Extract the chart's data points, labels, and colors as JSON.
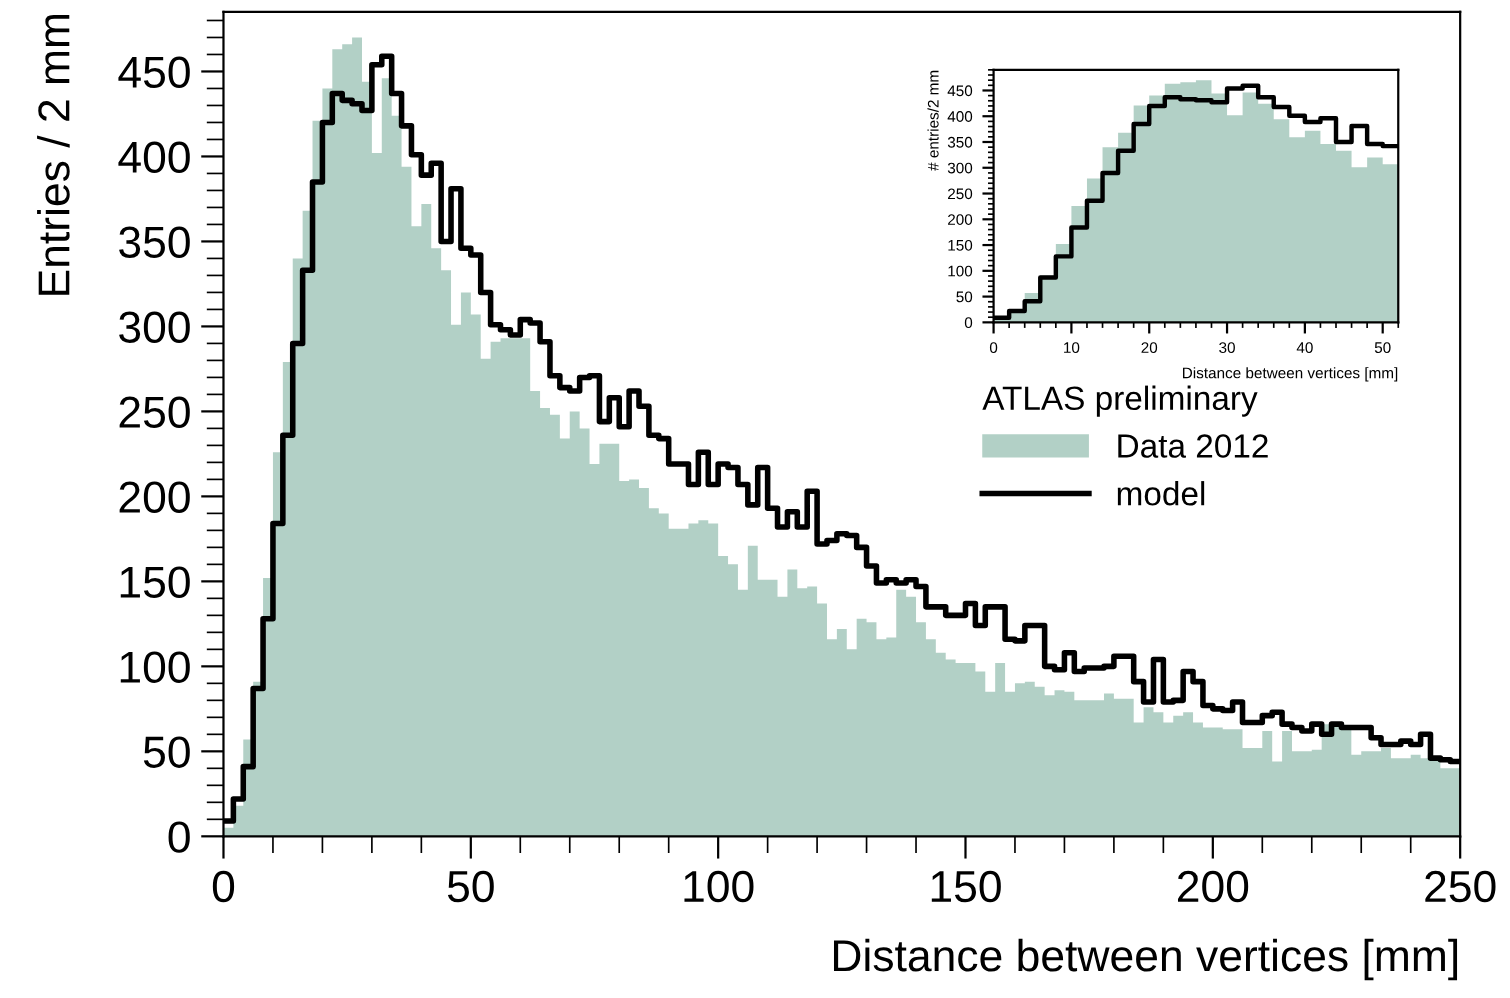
{
  "chart_data": [
    {
      "type": "histogram",
      "xlabel": "Distance between vertices [mm]",
      "ylabel": "Entries / 2 mm",
      "legend_title": "ATLAS preliminary",
      "legend": "center right",
      "grid": false,
      "xlim": [
        0,
        250
      ],
      "xticks": [
        0,
        50,
        100,
        150,
        200,
        250
      ],
      "ylim": [
        0,
        485
      ],
      "yticks": [
        0,
        50,
        100,
        150,
        200,
        250,
        300,
        350,
        400,
        450
      ],
      "bins": [
        0,
        2,
        4,
        6,
        8,
        10,
        12,
        14,
        16,
        18,
        20,
        22,
        24,
        26,
        28,
        30,
        32,
        34,
        36,
        38,
        40,
        42,
        44,
        46,
        48,
        50,
        52,
        54,
        56,
        58,
        60,
        62,
        64,
        66,
        68,
        70,
        72,
        74,
        76,
        78,
        80,
        82,
        84,
        86,
        88,
        90,
        92,
        94,
        96,
        98,
        100,
        102,
        104,
        106,
        108,
        110,
        112,
        114,
        116,
        118,
        120,
        122,
        124,
        126,
        128,
        130,
        132,
        134,
        136,
        138,
        140,
        142,
        144,
        146,
        148,
        150,
        152,
        154,
        156,
        158,
        160,
        162,
        164,
        166,
        168,
        170,
        172,
        174,
        176,
        178,
        180,
        182,
        184,
        186,
        188,
        190,
        192,
        194,
        196,
        198,
        200,
        202,
        204,
        206,
        208,
        210,
        212,
        214,
        216,
        218,
        220,
        222,
        224,
        226,
        228,
        230,
        232,
        234,
        236,
        238,
        240,
        242,
        244,
        246,
        248,
        250
      ],
      "series": [
        {
          "name": "Data 2012",
          "type": "histogram",
          "color": "#b2d0c6",
          "values": [
            5,
            18,
            57,
            91,
            152,
            226,
            279,
            340,
            368,
            421,
            440,
            463,
            466,
            470,
            444,
            402,
            446,
            424,
            394,
            359,
            372,
            346,
            333,
            301,
            320,
            307,
            281,
            291,
            293,
            293,
            293,
            262,
            252,
            248,
            234,
            250,
            240,
            219,
            231,
            231,
            209,
            210,
            205,
            193,
            190,
            181,
            181,
            184,
            186,
            184,
            165,
            160,
            145,
            171,
            151,
            151,
            141,
            157,
            146,
            147,
            137,
            116,
            122,
            110,
            128,
            126,
            116,
            117,
            145,
            141,
            126,
            116,
            108,
            104,
            102,
            102,
            97,
            85,
            102,
            85,
            90,
            91,
            88,
            83,
            86,
            85,
            80,
            80,
            80,
            84,
            81,
            81,
            67,
            76,
            73,
            67,
            71,
            73,
            67,
            64,
            64,
            63,
            63,
            52,
            52,
            62,
            44,
            62,
            50,
            50,
            51,
            66,
            66,
            64,
            48,
            50,
            50,
            52,
            46,
            46,
            48,
            46,
            46,
            40,
            40
          ]
        },
        {
          "name": "model",
          "type": "histogram",
          "color": "#000000",
          "values": [
            9,
            22,
            41,
            87,
            128,
            184,
            236,
            290,
            333,
            385,
            420,
            437,
            433,
            431,
            427,
            454,
            459,
            437,
            418,
            401,
            389,
            396,
            350,
            381,
            346,
            342,
            320,
            301,
            298,
            295,
            304,
            302,
            291,
            271,
            264,
            262,
            270,
            271,
            244,
            258,
            241,
            262,
            253,
            236,
            234,
            219,
            219,
            207,
            226,
            207,
            219,
            217,
            207,
            195,
            217,
            193,
            182,
            191,
            182,
            203,
            172,
            174,
            178,
            177,
            170,
            159,
            149,
            151,
            149,
            151,
            147,
            135,
            135,
            130,
            130,
            137,
            124,
            135,
            135,
            116,
            115,
            124,
            124,
            100,
            98,
            108,
            97,
            99,
            99,
            100,
            106,
            106,
            91,
            79,
            104,
            79,
            80,
            97,
            91,
            77,
            75,
            74,
            79,
            67,
            67,
            71,
            73,
            66,
            64,
            62,
            66,
            60,
            66,
            64,
            64,
            64,
            58,
            54,
            54,
            56,
            54,
            60,
            46,
            45,
            44
          ]
        }
      ]
    },
    {
      "type": "histogram",
      "xlabel": "Distance between vertices [mm]",
      "ylabel": "# entries/2 mm",
      "legend": false,
      "grid": false,
      "xlim": [
        0,
        52
      ],
      "xticks": [
        0,
        10,
        20,
        30,
        40,
        50
      ],
      "ylim": [
        0,
        490
      ],
      "yticks": [
        0,
        50,
        100,
        150,
        200,
        250,
        300,
        350,
        400,
        450
      ],
      "bins": [
        0,
        2,
        4,
        6,
        8,
        10,
        12,
        14,
        16,
        18,
        20,
        22,
        24,
        26,
        28,
        30,
        32,
        34,
        36,
        38,
        40,
        42,
        44,
        46,
        48,
        50,
        52
      ],
      "series": [
        {
          "type": "histogram",
          "color": "#b2d0c6",
          "values": [
            5,
            18,
            57,
            91,
            152,
            226,
            279,
            340,
            368,
            421,
            440,
            463,
            466,
            470,
            444,
            402,
            446,
            424,
            394,
            359,
            372,
            346,
            333,
            301,
            320,
            307
          ]
        },
        {
          "type": "histogram",
          "color": "#000000",
          "values": [
            9,
            22,
            41,
            87,
            128,
            184,
            236,
            290,
            333,
            385,
            420,
            437,
            433,
            431,
            427,
            454,
            459,
            437,
            418,
            401,
            389,
            396,
            350,
            381,
            346,
            342
          ]
        }
      ]
    }
  ]
}
